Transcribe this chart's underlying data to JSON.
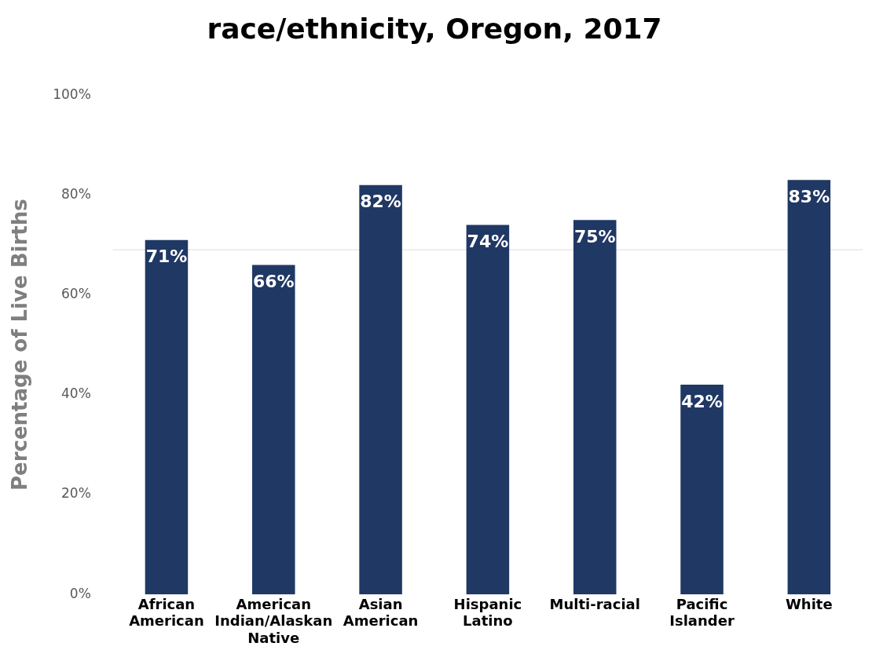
{
  "chart_data": {
    "type": "bar",
    "title": "race/ethnicity, Oregon, 2017",
    "ylabel": "Percentage of Live Births",
    "categories": [
      "African American",
      "American Indian/Alaskan Native",
      "Asian American",
      "Hispanic Latino",
      "Multi-racial",
      "Pacific Islander",
      "White"
    ],
    "values": [
      71,
      66,
      82,
      74,
      75,
      42,
      83
    ],
    "color": "#203864",
    "value_labels": [
      "71%",
      "66%",
      "82%",
      "74%",
      "75%",
      "42%",
      "83%"
    ],
    "ylim": [
      0,
      100
    ],
    "yticks": [
      {
        "value": 0,
        "label": "0%"
      },
      {
        "value": 20,
        "label": "20%"
      },
      {
        "value": 40,
        "label": "40%"
      },
      {
        "value": 60,
        "label": "60%"
      },
      {
        "value": 80,
        "label": "80%"
      },
      {
        "value": 100,
        "label": "100%"
      }
    ],
    "ref_lines": [
      {
        "axis": "y",
        "value": 69,
        "color": "#e8e8e8"
      }
    ],
    "grid": false,
    "legend": false
  }
}
